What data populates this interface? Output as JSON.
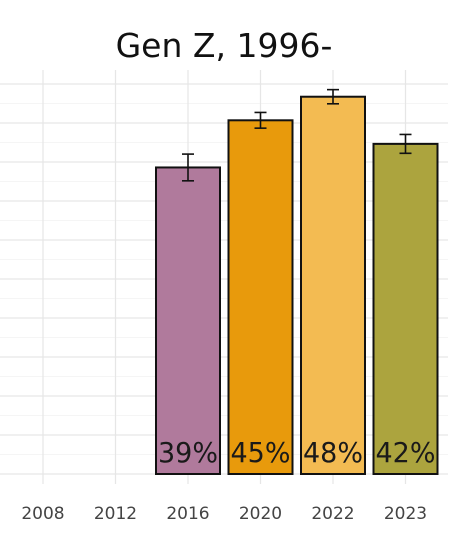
{
  "chart_data": {
    "type": "bar",
    "title": "Gen Z, 1996-",
    "xlabel": "",
    "ylabel": "",
    "categories": [
      "2008",
      "2012",
      "2016",
      "2020",
      "2022",
      "2023"
    ],
    "values": [
      null,
      null,
      39,
      45,
      48,
      42
    ],
    "error_bars": [
      null,
      null,
      [
        37.3,
        40.7
      ],
      [
        44.0,
        46.0
      ],
      [
        47.1,
        48.9
      ],
      [
        40.8,
        43.2
      ]
    ],
    "data_labels": [
      "",
      "",
      "39%",
      "45%",
      "48%",
      "42%"
    ],
    "bar_colors": [
      "",
      "",
      "#b07a9c",
      "#e89a0c",
      "#f3bb52",
      "#aca43e"
    ],
    "ylim": [
      0,
      52
    ],
    "grid": true,
    "legend": "none"
  }
}
